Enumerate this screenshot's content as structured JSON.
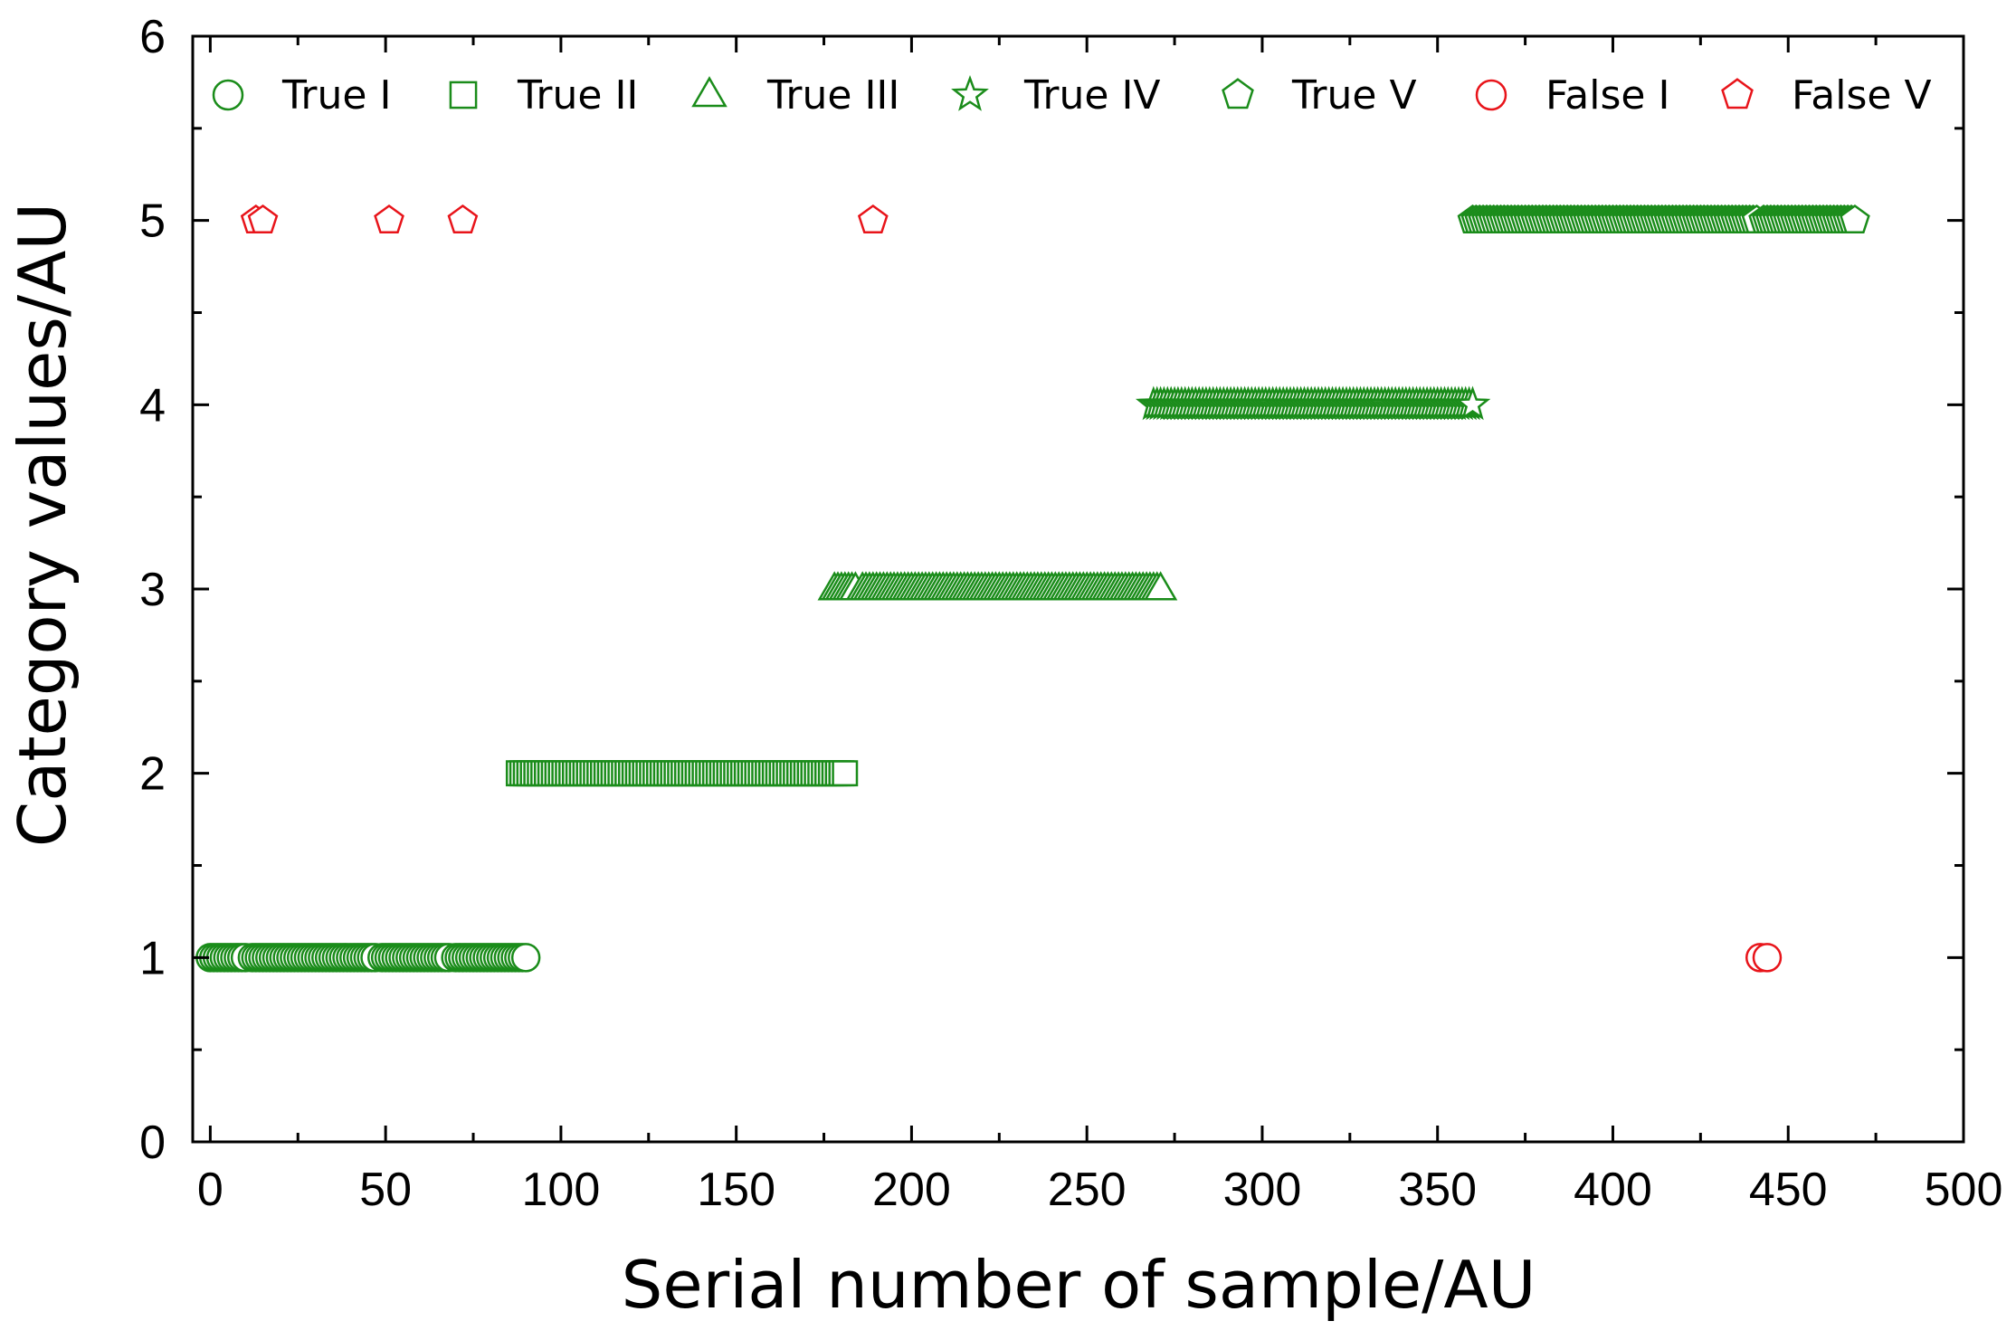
{
  "chart_data": {
    "type": "scatter",
    "title": "",
    "xlabel": "Serial number of sample/AU",
    "ylabel": "Category values/AU",
    "xlim": [
      -5,
      500
    ],
    "ylim": [
      0,
      6
    ],
    "xticks": [
      0,
      50,
      100,
      150,
      200,
      250,
      300,
      350,
      400,
      450,
      500
    ],
    "yticks": [
      0,
      1,
      2,
      3,
      4,
      5,
      6
    ],
    "grid": false,
    "legend_position": "top",
    "series": [
      {
        "name": "True I",
        "marker": "circle",
        "color": "#1a8c1a",
        "y": 1,
        "x_ranges": [
          [
            0,
            90
          ]
        ],
        "x_omit": [
          11,
          48,
          69
        ]
      },
      {
        "name": "True II",
        "marker": "square",
        "color": "#1a8c1a",
        "y": 2,
        "x_ranges": [
          [
            88,
            181
          ]
        ],
        "x_omit": []
      },
      {
        "name": "True III",
        "marker": "triangle",
        "color": "#1a8c1a",
        "y": 3,
        "x_ranges": [
          [
            178,
            271
          ]
        ],
        "x_omit": [
          185
        ]
      },
      {
        "name": "True IV",
        "marker": "star",
        "color": "#1a8c1a",
        "y": 4,
        "x_ranges": [
          [
            269,
            360
          ]
        ],
        "x_omit": []
      },
      {
        "name": "True V",
        "marker": "pentagon",
        "color": "#1a8c1a",
        "y": 5,
        "x_ranges": [
          [
            360,
            469
          ]
        ],
        "x_omit": [
          442
        ]
      },
      {
        "name": "False I",
        "marker": "circle",
        "color": "#e8141a",
        "y": 1,
        "x": [
          442,
          444
        ],
        "x_omit": []
      },
      {
        "name": "False V",
        "marker": "pentagon",
        "color": "#e8141a",
        "y": 5,
        "x": [
          13,
          15,
          51,
          72,
          189
        ],
        "x_omit": []
      }
    ]
  }
}
